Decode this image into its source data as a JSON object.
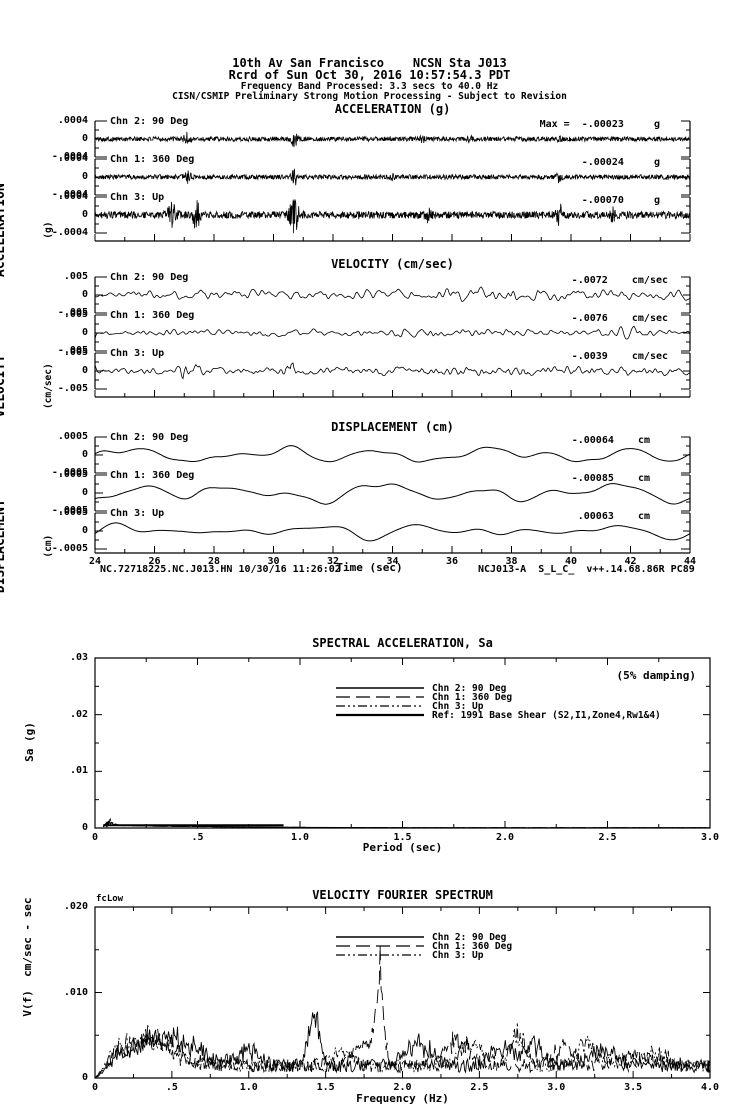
{
  "header": {
    "line1": "10th Av San Francisco    NCSN Sta J013",
    "line2": "Rcrd of Sun Oct 30, 2016 10:57:54.3 PDT",
    "line3": "Frequency Band Processed: 3.3 secs to 40.0 Hz",
    "line4": "CISN/CSMIP Preliminary Strong Motion Processing - Subject to Revision"
  },
  "footer": {
    "left": "NC.72718225.NC.J013.HN 10/30/16 11:26:02",
    "center": "Time (sec)",
    "right": "NCJ013-A  S_L_C_  v++.14.68.86R PC89"
  },
  "chart_data": [
    {
      "type": "line",
      "id": "acceleration-time-series",
      "title": "ACCELERATION (g)",
      "ylabel": "ACCELERATION",
      "ylabel_unit": "(g)",
      "x_range_sec": [
        24,
        44
      ],
      "y_limit": 0.0004,
      "y_tick_labels": [
        ".0004",
        "0",
        "-.0004"
      ],
      "traces": [
        {
          "channel": "Chn 2: 90 Deg",
          "max_text": "Max =  -.00023     g",
          "max_value": -0.00023,
          "unit": "g",
          "synth": {
            "n": 1400,
            "seed": 101,
            "smooth": 0,
            "base": 0.13,
            "clip": 1.15,
            "bursts": [
              [
                0.155,
                0.006,
                2.2
              ],
              [
                0.335,
                0.005,
                3.0
              ],
              [
                0.55,
                0.004,
                1.1
              ],
              [
                0.63,
                0.004,
                1.0
              ],
              [
                0.78,
                0.004,
                1.6
              ]
            ]
          }
        },
        {
          "channel": "Chn 1: 360 Deg",
          "max_text": "-.00024     g",
          "max_value": -0.00024,
          "unit": "g",
          "synth": {
            "n": 1400,
            "seed": 202,
            "smooth": 0,
            "base": 0.13,
            "clip": 1.15,
            "bursts": [
              [
                0.155,
                0.006,
                2.0
              ],
              [
                0.335,
                0.005,
                3.2
              ],
              [
                0.5,
                0.004,
                1.0
              ],
              [
                0.78,
                0.004,
                1.8
              ]
            ]
          }
        },
        {
          "channel": "Chn 3: Up",
          "max_text": "-.00070     g",
          "max_value": -0.0007,
          "unit": "g",
          "synth": {
            "n": 1400,
            "seed": 303,
            "smooth": 0,
            "base": 0.2,
            "clip": 1.45,
            "bursts": [
              [
                0.13,
                0.008,
                2.8
              ],
              [
                0.17,
                0.006,
                3.5
              ],
              [
                0.335,
                0.008,
                4.5
              ],
              [
                0.56,
                0.005,
                1.5
              ],
              [
                0.78,
                0.006,
                2.8
              ],
              [
                0.87,
                0.004,
                1.5
              ]
            ]
          }
        }
      ]
    },
    {
      "type": "line",
      "id": "velocity-time-series",
      "title": "VELOCITY (cm/sec)",
      "ylabel": "VELOCITY",
      "ylabel_unit": "(cm/sec)",
      "x_range_sec": [
        24,
        44
      ],
      "y_limit": 0.005,
      "y_tick_labels": [
        ".005",
        "0",
        "-.005"
      ],
      "traces": [
        {
          "channel": "Chn 2: 90 Deg",
          "max_text": "-.0072    cm/sec",
          "max_value": -0.0072,
          "unit": "cm/sec",
          "synth": {
            "n": 650,
            "seed": 404,
            "smooth": 3,
            "base": 0.3,
            "clip": 1.1,
            "bursts": [
              [
                0.34,
                0.01,
                0.8
              ],
              [
                0.55,
                0.2,
                0.4
              ],
              [
                0.8,
                0.15,
                0.5
              ]
            ]
          }
        },
        {
          "channel": "Chn 1: 360 Deg",
          "max_text": "-.0076    cm/sec",
          "max_value": -0.0076,
          "unit": "cm/sec",
          "synth": {
            "n": 650,
            "seed": 505,
            "smooth": 3,
            "base": 0.3,
            "clip": 1.1,
            "bursts": [
              [
                0.5,
                0.3,
                0.3
              ],
              [
                0.9,
                0.03,
                1.2
              ]
            ]
          }
        },
        {
          "channel": "Chn 3: Up",
          "max_text": "-.0039    cm/sec",
          "max_value": -0.0039,
          "unit": "cm/sec",
          "synth": {
            "n": 650,
            "seed": 606,
            "smooth": 2,
            "base": 0.32,
            "clip": 1.2,
            "bursts": [
              [
                0.15,
                0.01,
                1.8
              ],
              [
                0.17,
                0.008,
                1.5
              ],
              [
                0.33,
                0.012,
                2.0
              ],
              [
                0.7,
                0.2,
                0.3
              ]
            ]
          }
        }
      ]
    },
    {
      "type": "line",
      "id": "displacement-time-series",
      "title": "DISPLACEMENT (cm)",
      "ylabel": "DISPLACEMENT",
      "ylabel_unit": "(cm)",
      "x_range_sec": [
        24,
        44
      ],
      "x_tick_labels": [
        "24",
        "26",
        "28",
        "30",
        "32",
        "34",
        "36",
        "38",
        "40",
        "42",
        "44"
      ],
      "xlabel": "Time (sec)",
      "y_limit": 0.0005,
      "y_tick_labels": [
        ".0005",
        "0",
        "-.0005"
      ],
      "traces": [
        {
          "channel": "Chn 2: 90 Deg",
          "max_text": "-.00064    cm",
          "max_value": -0.00064,
          "unit": "cm",
          "synth": {
            "type": "sines",
            "seed": 707,
            "base": 0.52,
            "comps": [
              [
                3,
                0.5
              ],
              [
                5,
                0.8
              ],
              [
                7,
                0.6
              ],
              [
                9,
                0.45
              ],
              [
                12,
                0.3
              ],
              [
                16,
                0.15
              ],
              [
                22,
                0.08
              ]
            ]
          }
        },
        {
          "channel": "Chn 1: 360 Deg",
          "max_text": "-.00085    cm",
          "max_value": -0.00085,
          "unit": "cm",
          "synth": {
            "type": "sines",
            "seed": 808,
            "base": 0.62,
            "comps": [
              [
                3,
                0.7
              ],
              [
                5,
                0.8
              ],
              [
                7,
                0.5
              ],
              [
                9,
                0.4
              ],
              [
                12,
                0.25
              ],
              [
                16,
                0.12
              ],
              [
                22,
                0.07
              ]
            ]
          }
        },
        {
          "channel": "Chn 3: Up",
          "max_text": ".00063    cm",
          "max_value": 0.00063,
          "unit": "cm",
          "synth": {
            "type": "sines",
            "seed": 909,
            "base": 0.55,
            "comps": [
              [
                4,
                0.6
              ],
              [
                6,
                0.8
              ],
              [
                8,
                0.5
              ],
              [
                10,
                0.4
              ],
              [
                13,
                0.25
              ],
              [
                18,
                0.1
              ]
            ]
          }
        }
      ]
    },
    {
      "type": "line",
      "id": "spectral-acceleration",
      "title": "SPECTRAL ACCELERATION, Sa",
      "annotation": "(5% damping)",
      "xlabel": "Period (sec)",
      "ylabel": "Sa (g)",
      "xlim": [
        0,
        3.0
      ],
      "ylim": [
        0,
        0.03
      ],
      "x_tick_labels": [
        "0",
        ".5",
        "1.0",
        "1.5",
        "2.0",
        "2.5",
        "3.0"
      ],
      "y_tick_labels": [
        "0",
        ".01",
        ".02",
        ".03"
      ],
      "legend": [
        {
          "label": "Chn 2: 90 Deg",
          "dash": "solid"
        },
        {
          "label": "Chn 1: 360 Deg",
          "dash": "long-dash"
        },
        {
          "label": "Chn 3: Up",
          "dash": "dash-dot"
        },
        {
          "label": "Ref: 1991 Base Shear (S2,I1,Zone4,Rw1&4)",
          "dash": "solid-thick"
        }
      ],
      "series": [
        {
          "name": "Chn 2: 90 Deg",
          "dash": "solid",
          "points": [
            [
              0.04,
              0.00025
            ],
            [
              0.05,
              0.0006
            ],
            [
              0.055,
              0.0003
            ],
            [
              0.06,
              0.0011
            ],
            [
              0.065,
              0.0005
            ],
            [
              0.07,
              0.0013
            ],
            [
              0.075,
              0.0007
            ],
            [
              0.08,
              0.001
            ],
            [
              0.09,
              0.0006
            ],
            [
              0.1,
              0.0007
            ],
            [
              0.12,
              0.0005
            ],
            [
              0.15,
              0.00045
            ],
            [
              0.2,
              0.0004
            ],
            [
              0.3,
              0.00035
            ],
            [
              0.4,
              0.0003
            ],
            [
              0.5,
              0.0003
            ],
            [
              0.6,
              0.00025
            ],
            [
              0.7,
              0.0002
            ],
            [
              0.8,
              0.0002
            ],
            [
              0.9,
              0.00015
            ],
            [
              1.0,
              0.0001
            ],
            [
              1.2,
              8e-05
            ],
            [
              1.5,
              5e-05
            ],
            [
              2.0,
              4e-05
            ],
            [
              2.5,
              3e-05
            ],
            [
              3.0,
              3e-05
            ]
          ]
        },
        {
          "name": "Chn 1: 360 Deg",
          "dash": "long-dash",
          "points": [
            [
              0.04,
              0.0002
            ],
            [
              0.05,
              0.0005
            ],
            [
              0.055,
              0.0009
            ],
            [
              0.06,
              0.0004
            ],
            [
              0.065,
              0.0012
            ],
            [
              0.07,
              0.0006
            ],
            [
              0.08,
              0.0008
            ],
            [
              0.09,
              0.0005
            ],
            [
              0.1,
              0.0006
            ],
            [
              0.12,
              0.00045
            ],
            [
              0.15,
              0.0004
            ],
            [
              0.2,
              0.00038
            ],
            [
              0.3,
              0.00032
            ],
            [
              0.4,
              0.00028
            ],
            [
              0.5,
              0.00026
            ],
            [
              0.6,
              0.00022
            ],
            [
              0.7,
              0.0002
            ],
            [
              0.8,
              0.00018
            ],
            [
              0.9,
              0.00013
            ],
            [
              1.0,
              0.0001
            ],
            [
              1.2,
              7e-05
            ],
            [
              1.5,
              5e-05
            ],
            [
              2.0,
              4e-05
            ],
            [
              2.5,
              3e-05
            ],
            [
              3.0,
              3e-05
            ]
          ]
        },
        {
          "name": "Chn 3: Up",
          "dash": "dash-dot",
          "points": [
            [
              0.04,
              0.0003
            ],
            [
              0.05,
              0.0007
            ],
            [
              0.06,
              0.0004
            ],
            [
              0.07,
              0.0009
            ],
            [
              0.075,
              0.0015
            ],
            [
              0.08,
              0.0008
            ],
            [
              0.09,
              0.001
            ],
            [
              0.1,
              0.0006
            ],
            [
              0.12,
              0.0005
            ],
            [
              0.15,
              0.00042
            ],
            [
              0.2,
              0.00038
            ],
            [
              0.3,
              0.00033
            ],
            [
              0.4,
              0.0003
            ],
            [
              0.5,
              0.00028
            ],
            [
              0.6,
              0.00024
            ],
            [
              0.7,
              0.0002
            ],
            [
              0.8,
              0.00017
            ],
            [
              0.9,
              0.00013
            ],
            [
              1.0,
              0.0001
            ],
            [
              1.2,
              7e-05
            ],
            [
              1.5,
              5e-05
            ],
            [
              2.0,
              4e-05
            ],
            [
              2.5,
              3e-05
            ],
            [
              3.0,
              3e-05
            ]
          ]
        },
        {
          "name": "Ref: 1991 Base Shear (S2,I1,Zone4,Rw1&4)",
          "dash": "solid-thick",
          "points": [
            [
              0.04,
              0.0005
            ],
            [
              0.92,
              0.0005
            ]
          ]
        }
      ]
    },
    {
      "type": "line",
      "id": "velocity-fourier-spectrum",
      "title": "VELOCITY FOURIER SPECTRUM",
      "corner_label": "fcLow",
      "xlabel": "Frequency (Hz)",
      "ylabel": "V(f)  cm/sec - sec",
      "xlim": [
        0,
        4.0
      ],
      "ylim": [
        0,
        0.02
      ],
      "x_tick_labels": [
        "0",
        ".5",
        "1.0",
        "1.5",
        "2.0",
        "2.5",
        "3.0",
        "3.5",
        "4.0"
      ],
      "y_tick_labels": [
        "0",
        ".010",
        ".020"
      ],
      "legend": [
        {
          "label": "Chn 2: 90 Deg",
          "dash": "solid"
        },
        {
          "label": "Chn 1: 360 Deg",
          "dash": "long-dash"
        },
        {
          "label": "Chn 3: Up",
          "dash": "dash-dot"
        }
      ],
      "series": [
        {
          "name": "Chn 3: Up",
          "dash": "dash-dot",
          "synth": {
            "seed": 73,
            "n": 620,
            "floor": 0.0022,
            "peaks": [
              [
                0.3,
                0.25,
                0.004
              ],
              [
                1.6,
                0.1,
                0.002
              ],
              [
                2.45,
                0.12,
                0.0035
              ],
              [
                2.75,
                0.07,
                0.0048
              ],
              [
                3.2,
                0.1,
                0.003
              ],
              [
                3.65,
                0.1,
                0.0022
              ]
            ]
          }
        },
        {
          "name": "Chn 1: 360 Deg",
          "dash": "long-dash",
          "synth": {
            "seed": 72,
            "n": 620,
            "floor": 0.0022,
            "peaks": [
              [
                0.35,
                0.25,
                0.004
              ],
              [
                1.75,
                0.1,
                0.003
              ],
              [
                1.85,
                0.035,
                0.0135
              ],
              [
                2.35,
                0.12,
                0.0038
              ],
              [
                3.05,
                0.1,
                0.0028
              ],
              [
                3.5,
                0.15,
                0.002
              ]
            ]
          }
        },
        {
          "name": "Chn 2: 90 Deg",
          "dash": "solid",
          "synth": {
            "seed": 71,
            "n": 620,
            "floor": 0.0022,
            "peaks": [
              [
                0.45,
                0.3,
                0.0045
              ],
              [
                1.0,
                0.1,
                0.002
              ],
              [
                1.42,
                0.05,
                0.0085
              ],
              [
                2.1,
                0.12,
                0.0035
              ],
              [
                2.65,
                0.1,
                0.003
              ],
              [
                2.85,
                0.08,
                0.0035
              ],
              [
                3.3,
                0.12,
                0.0028
              ]
            ]
          }
        }
      ]
    }
  ]
}
